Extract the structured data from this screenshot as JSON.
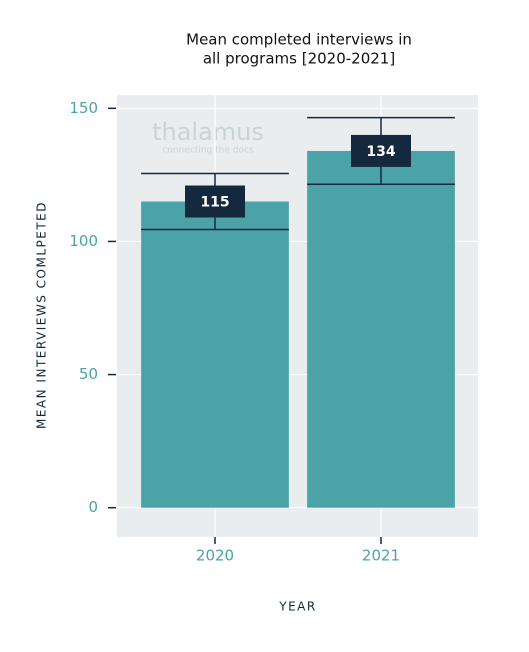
{
  "chart_data": {
    "type": "bar",
    "title": [
      "Mean completed interviews in",
      "all programs [2020-2021]"
    ],
    "watermark": [
      "thalamus",
      "connecting the docs"
    ],
    "xlabel": "YEAR",
    "ylabel": "MEAN INTERVIEWS COMLPETED",
    "categories": [
      "2020",
      "2021"
    ],
    "values": [
      115,
      134
    ],
    "errors": [
      10.5,
      12.5
    ],
    "color": "#4ba3a7",
    "label_color": "#14293d",
    "ylim": [
      -11,
      155
    ],
    "yticks": [
      0,
      50,
      100,
      150
    ],
    "grid": true
  }
}
